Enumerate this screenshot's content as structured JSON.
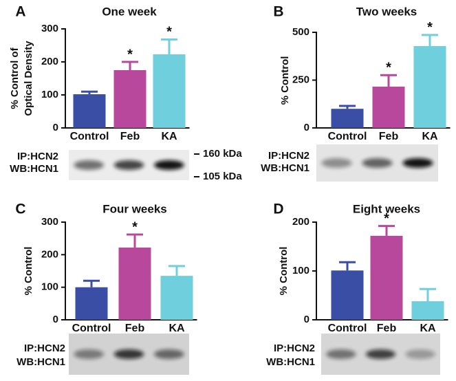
{
  "chart_data": [
    {
      "type": "bar",
      "panel": "A",
      "title": "One week",
      "ylabel": [
        "% Control of",
        "Optical Density"
      ],
      "categories": [
        "Control",
        "Feb",
        "KA"
      ],
      "values": [
        102,
        175,
        223
      ],
      "errors": [
        8,
        25,
        45
      ],
      "colors": [
        "#3b4ea5",
        "#b8489c",
        "#6fcfdc"
      ],
      "ylim": [
        0,
        300
      ],
      "yticks": [
        0,
        100,
        200,
        300
      ],
      "annotations": [
        {
          "text": "*",
          "category": 1
        },
        {
          "text": "*",
          "category": 2
        }
      ],
      "blot": {
        "labels": [
          "IP:HCN2",
          "WB:HCN1"
        ],
        "markers": [
          "160 kDa",
          "105 kDa"
        ]
      }
    },
    {
      "type": "bar",
      "panel": "B",
      "title": "Two weeks",
      "ylabel": [
        "% Control"
      ],
      "categories": [
        "Control",
        "Feb",
        "KA"
      ],
      "values": [
        100,
        216,
        428
      ],
      "errors": [
        15,
        60,
        58
      ],
      "colors": [
        "#3b4ea5",
        "#b8489c",
        "#6fcfdc"
      ],
      "ylim": [
        0,
        500
      ],
      "yticks": [
        0,
        250,
        500
      ],
      "annotations": [
        {
          "text": "*",
          "category": 1
        },
        {
          "text": "*",
          "category": 2
        }
      ],
      "blot": {
        "labels": [
          "IP:HCN2",
          "WB:HCN1"
        ]
      }
    },
    {
      "type": "bar",
      "panel": "C",
      "title": "Four weeks",
      "ylabel": [
        "% Control"
      ],
      "categories": [
        "Control",
        "Feb",
        "KA"
      ],
      "values": [
        100,
        222,
        135
      ],
      "errors": [
        20,
        40,
        30
      ],
      "colors": [
        "#3b4ea5",
        "#b8489c",
        "#6fcfdc"
      ],
      "ylim": [
        0,
        300
      ],
      "yticks": [
        0,
        100,
        200,
        300
      ],
      "annotations": [
        {
          "text": "*",
          "category": 1
        }
      ],
      "blot": {
        "labels": [
          "IP:HCN2",
          "WB:HCN1"
        ]
      }
    },
    {
      "type": "bar",
      "panel": "D",
      "title": "Eight weeks",
      "ylabel": [
        "% Control"
      ],
      "categories": [
        "Control",
        "Feb",
        "KA"
      ],
      "values": [
        101,
        172,
        38
      ],
      "errors": [
        17,
        20,
        25
      ],
      "colors": [
        "#3b4ea5",
        "#b8489c",
        "#6fcfdc"
      ],
      "ylim": [
        0,
        200
      ],
      "yticks": [
        0,
        100,
        200
      ],
      "annotations": [
        {
          "text": "*",
          "category": 1
        }
      ],
      "blot": {
        "labels": [
          "IP:HCN2",
          "WB:HCN1"
        ]
      }
    }
  ]
}
